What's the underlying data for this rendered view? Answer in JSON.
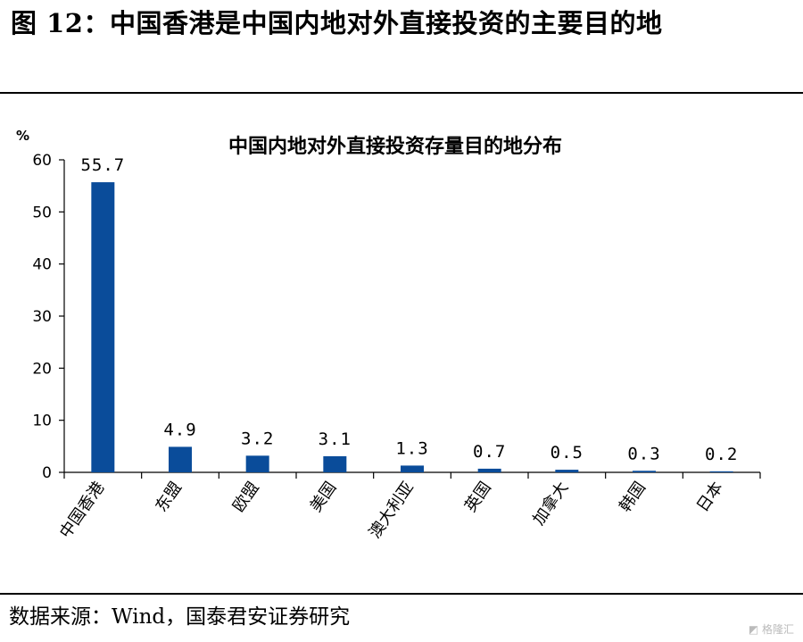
{
  "figure_title": "图 12：中国香港是中国内地对外直接投资的主要目的地",
  "source_note": "数据来源：Wind，国泰君安证券研究",
  "watermark": "格隆汇",
  "chart_data": {
    "type": "bar",
    "title": "中国内地对外直接投资存量目的地分布",
    "ylabel": "%",
    "xlabel": "",
    "ylim": [
      0,
      60
    ],
    "yticks": [
      0,
      10,
      20,
      30,
      40,
      50,
      60
    ],
    "categories": [
      "中国香港",
      "东盟",
      "欧盟",
      "美国",
      "澳大利亚",
      "英国",
      "加拿大",
      "韩国",
      "日本"
    ],
    "values": [
      55.7,
      4.9,
      3.2,
      3.1,
      1.3,
      0.7,
      0.5,
      0.3,
      0.2
    ],
    "data_labels": [
      "55.7",
      "4.9",
      "3.2",
      "3.1",
      "1.3",
      "0.7",
      "0.5",
      "0.3",
      "0.2"
    ],
    "bar_color": "#0a4c9a",
    "grid": false,
    "legend": "none"
  }
}
